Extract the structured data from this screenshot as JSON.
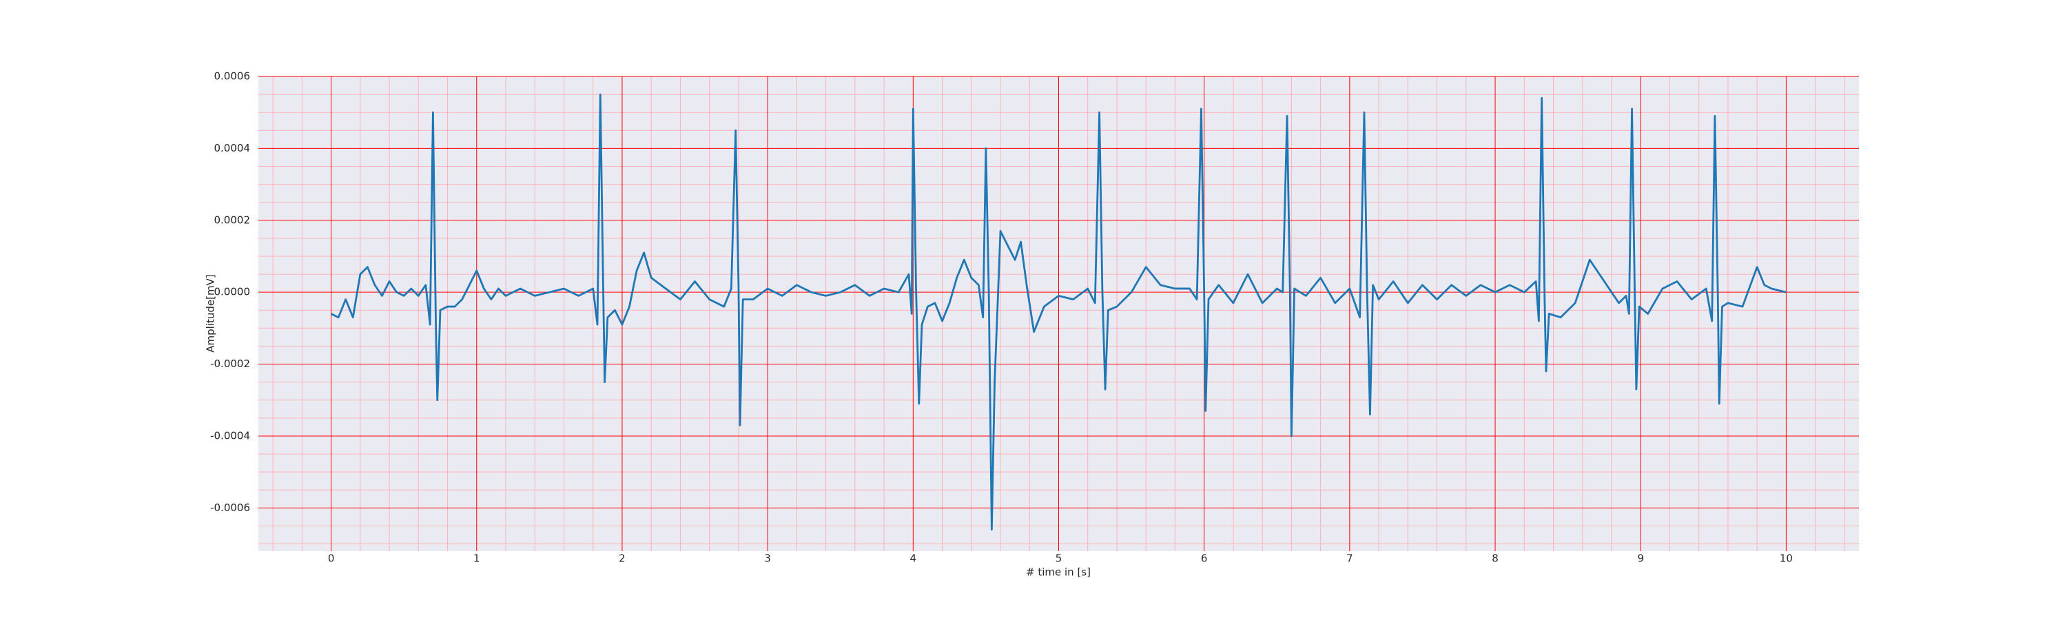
{
  "chart_data": {
    "type": "line",
    "xlabel": "# time in [s]",
    "ylabel": "Amplitude[mV]",
    "xlim": [
      -0.5,
      10.5
    ],
    "ylim": [
      -0.00072,
      0.0006
    ],
    "xticks": [
      0,
      1,
      2,
      3,
      4,
      5,
      6,
      7,
      8,
      9,
      10
    ],
    "yticks": [
      -0.0006,
      -0.0004,
      -0.0002,
      {
        "value": 0,
        "label": "0.0000"
      },
      0.0002,
      0.0004,
      0.0006
    ],
    "grid": true,
    "grid_color": "#ff0000",
    "minor_grid": true,
    "minor_grid_color": "#ffb0b8",
    "x_minor_divisions": 5,
    "y_minor_divisions": 4,
    "background": "#eaeaf2",
    "x": [
      0,
      0.05,
      0.1,
      0.15,
      0.2,
      0.25,
      0.3,
      0.35,
      0.4,
      0.45,
      0.5,
      0.55,
      0.6,
      0.65,
      0.68,
      0.7,
      0.72,
      0.73,
      0.75,
      0.8,
      0.85,
      0.9,
      0.95,
      1.0,
      1.05,
      1.1,
      1.15,
      1.2,
      1.3,
      1.4,
      1.5,
      1.6,
      1.7,
      1.8,
      1.83,
      1.85,
      1.87,
      1.88,
      1.9,
      1.95,
      2.0,
      2.05,
      2.1,
      2.15,
      2.2,
      2.3,
      2.4,
      2.5,
      2.6,
      2.7,
      2.75,
      2.78,
      2.8,
      2.81,
      2.83,
      2.9,
      3.0,
      3.1,
      3.2,
      3.3,
      3.4,
      3.5,
      3.6,
      3.7,
      3.8,
      3.9,
      3.97,
      3.99,
      4.0,
      4.02,
      4.04,
      4.06,
      4.1,
      4.15,
      4.2,
      4.25,
      4.3,
      4.35,
      4.4,
      4.45,
      4.48,
      4.5,
      4.52,
      4.54,
      4.56,
      4.6,
      4.65,
      4.7,
      4.74,
      4.78,
      4.83,
      4.9,
      5.0,
      5.1,
      5.2,
      5.25,
      5.28,
      5.3,
      5.32,
      5.34,
      5.4,
      5.5,
      5.6,
      5.7,
      5.8,
      5.9,
      5.95,
      5.98,
      6.0,
      6.01,
      6.03,
      6.1,
      6.2,
      6.3,
      6.4,
      6.5,
      6.54,
      6.57,
      6.59,
      6.6,
      6.62,
      6.7,
      6.8,
      6.9,
      7.0,
      7.07,
      7.1,
      7.12,
      7.14,
      7.16,
      7.2,
      7.3,
      7.4,
      7.5,
      7.6,
      7.7,
      7.8,
      7.9,
      8.0,
      8.1,
      8.2,
      8.28,
      8.3,
      8.32,
      8.34,
      8.35,
      8.37,
      8.45,
      8.55,
      8.65,
      8.75,
      8.85,
      8.9,
      8.92,
      8.94,
      8.96,
      8.97,
      8.99,
      9.05,
      9.15,
      9.25,
      9.35,
      9.45,
      9.49,
      9.51,
      9.53,
      9.54,
      9.56,
      9.6,
      9.7,
      9.8,
      9.85,
      9.9,
      10.0
    ],
    "series": [
      {
        "color": "#1f77b4",
        "values": [
          -6e-05,
          -7e-05,
          -2e-05,
          -7e-05,
          5e-05,
          7e-05,
          2e-05,
          -1e-05,
          3e-05,
          0,
          -1e-05,
          1e-05,
          -1e-05,
          2e-05,
          -9e-05,
          0.0005,
          -0.0001,
          -0.0003,
          -5e-05,
          -4e-05,
          -4e-05,
          -2e-05,
          2e-05,
          6e-05,
          1e-05,
          -2e-05,
          1e-05,
          -1e-05,
          1e-05,
          -1e-05,
          0,
          1e-05,
          -1e-05,
          1e-05,
          -9e-05,
          0.00055,
          1e-05,
          -0.00025,
          -7e-05,
          -5e-05,
          -9e-05,
          -4e-05,
          6e-05,
          0.00011,
          4e-05,
          1e-05,
          -2e-05,
          3e-05,
          -2e-05,
          -4e-05,
          1e-05,
          0.00045,
          2e-05,
          -0.00037,
          -2e-05,
          -2e-05,
          1e-05,
          -1e-05,
          2e-05,
          0,
          -1e-05,
          0,
          2e-05,
          -1e-05,
          1e-05,
          0,
          5e-05,
          -6e-05,
          0.00051,
          1e-05,
          -0.00031,
          -9e-05,
          -4e-05,
          -3e-05,
          -8e-05,
          -3e-05,
          4e-05,
          9e-05,
          4e-05,
          2e-05,
          -7e-05,
          0.0004,
          0,
          -0.00066,
          -0.00025,
          0.00017,
          0.00013,
          9e-05,
          0.00014,
          2e-05,
          -0.00011,
          -4e-05,
          -1e-05,
          -2e-05,
          1e-05,
          -3e-05,
          0.0005,
          1e-05,
          -0.00027,
          -5e-05,
          -4e-05,
          0,
          7e-05,
          2e-05,
          1e-05,
          1e-05,
          -2e-05,
          0.00051,
          0,
          -0.00033,
          -2e-05,
          2e-05,
          -3e-05,
          5e-05,
          -3e-05,
          1e-05,
          0,
          0.00049,
          0,
          -0.0004,
          1e-05,
          -1e-05,
          4e-05,
          -3e-05,
          1e-05,
          -7e-05,
          0.0005,
          0,
          -0.00034,
          2e-05,
          -2e-05,
          3e-05,
          -3e-05,
          2e-05,
          -2e-05,
          2e-05,
          -1e-05,
          2e-05,
          0,
          2e-05,
          0,
          3e-05,
          -8e-05,
          0.00054,
          -2e-05,
          -0.00022,
          -6e-05,
          -7e-05,
          -3e-05,
          9e-05,
          3e-05,
          -3e-05,
          -1e-05,
          -6e-05,
          0.00051,
          -2e-05,
          -0.00027,
          -4e-05,
          -6e-05,
          1e-05,
          3e-05,
          -2e-05,
          1e-05,
          -8e-05,
          0.00049,
          0,
          -0.00031,
          -4e-05,
          -3e-05,
          -4e-05,
          7e-05,
          2e-05,
          1e-05,
          0
        ]
      }
    ]
  }
}
